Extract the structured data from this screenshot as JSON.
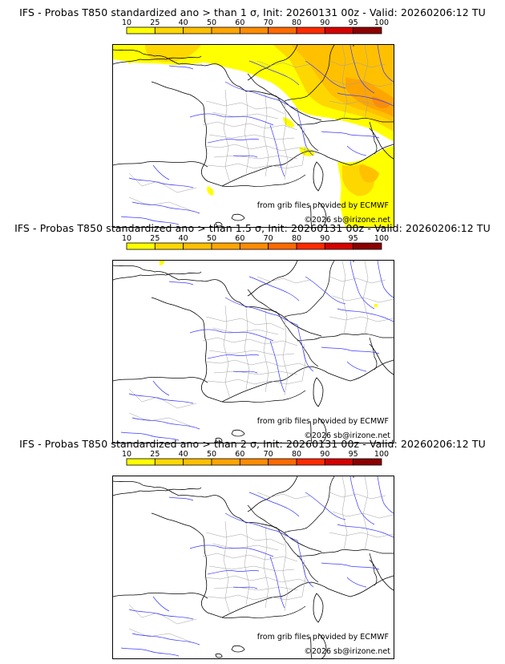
{
  "scale": {
    "ticks": [
      "10",
      "25",
      "40",
      "50",
      "60",
      "70",
      "80",
      "90",
      "95",
      "100"
    ],
    "colors": [
      "#ffff00",
      "#ffd700",
      "#ffc000",
      "#ffa500",
      "#ff8c00",
      "#ff6a00",
      "#ff2a00",
      "#d40000",
      "#8b0000"
    ]
  },
  "panels": [
    {
      "title": "IFS - Probas T850  standardized ano > than 1 σ, Init: 20260131 00z - Valid: 20260206:12 TU",
      "source": "from grib files provided by ECMWF",
      "copyright": "©2026 sb@irizone.net"
    },
    {
      "title": "IFS - Probas T850  standardized ano > than 1.5 σ, Init: 20260131 00z - Valid: 20260206:12 TU",
      "source": "from grib files provided by ECMWF",
      "copyright": "©2026 sb@irizone.net"
    },
    {
      "title": "IFS - Probas T850  standardized ano > than 2 σ, Init: 20260131 00z - Valid: 20260206:12 TU",
      "source": "from grib files provided by ECMWF",
      "copyright": "©2026 sb@irizone.net"
    }
  ]
}
